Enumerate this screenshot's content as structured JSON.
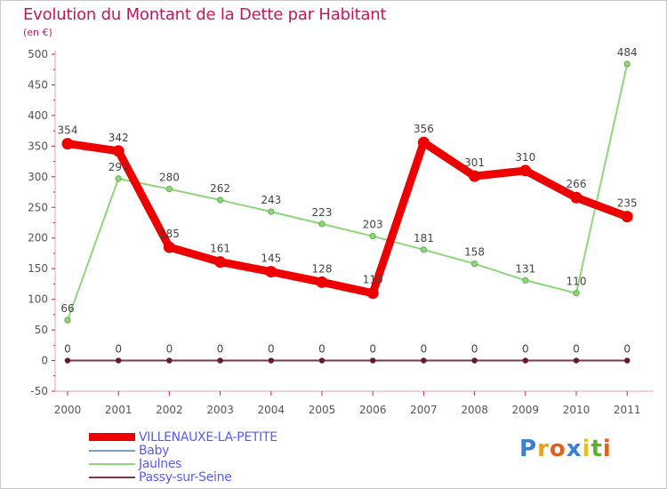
{
  "header": {
    "title": "Evolution du Montant de la Dette par Habitant",
    "unit": "(en €)"
  },
  "logo": {
    "text": "Proxiti",
    "letters": [
      "P",
      "r",
      "o",
      "x",
      "i",
      "t",
      "i"
    ],
    "colors": [
      "#3a7fd0",
      "#e8a020",
      "#e06020",
      "#3a7fd0",
      "#e8c020",
      "#60b030",
      "#e06020"
    ]
  },
  "chart_data": {
    "type": "line",
    "title": "Evolution du Montant de la Dette par Habitant",
    "ylabel": "(en €)",
    "xlabel": "",
    "x": [
      "2000",
      "2001",
      "2002",
      "2003",
      "2004",
      "2005",
      "2006",
      "2007",
      "2008",
      "2009",
      "2010",
      "2011"
    ],
    "ylim": [
      -50,
      500
    ],
    "yticks": [
      -50,
      0,
      50,
      100,
      150,
      200,
      250,
      300,
      350,
      400,
      450,
      500
    ],
    "grid": false,
    "legend_position": "bottom-left",
    "series": [
      {
        "name": "VILLENAUXE-LA-PETITE",
        "color": "#ee0000",
        "width": 9,
        "values": [
          354,
          342,
          185,
          161,
          145,
          128,
          110,
          356,
          301,
          310,
          266,
          235
        ],
        "labels": [
          "354",
          "342",
          "185",
          "161",
          "145",
          "128",
          "110",
          "356",
          "301",
          "310",
          "266",
          "235"
        ]
      },
      {
        "name": "Baby",
        "color": "#7aa0c8",
        "width": 2,
        "values": [
          0,
          0,
          0,
          0,
          0,
          0,
          0,
          0,
          0,
          0,
          0,
          0
        ],
        "labels": []
      },
      {
        "name": "Jaulnes",
        "color": "#8ed67a",
        "width": 2,
        "values": [
          66,
          297,
          280,
          262,
          243,
          223,
          203,
          181,
          158,
          131,
          110,
          484
        ],
        "labels": [
          "66",
          "297",
          "280",
          "262",
          "243",
          "223",
          "203",
          "181",
          "158",
          "131",
          "110",
          "484"
        ]
      },
      {
        "name": "Passy-sur-Seine",
        "color": "#7a3a44",
        "width": 2,
        "values": [
          0,
          0,
          0,
          0,
          0,
          0,
          0,
          0,
          0,
          0,
          0,
          0
        ],
        "labels": [
          "0",
          "0",
          "0",
          "0",
          "0",
          "0",
          "0",
          "0",
          "0",
          "0",
          "0",
          "0"
        ]
      }
    ]
  }
}
